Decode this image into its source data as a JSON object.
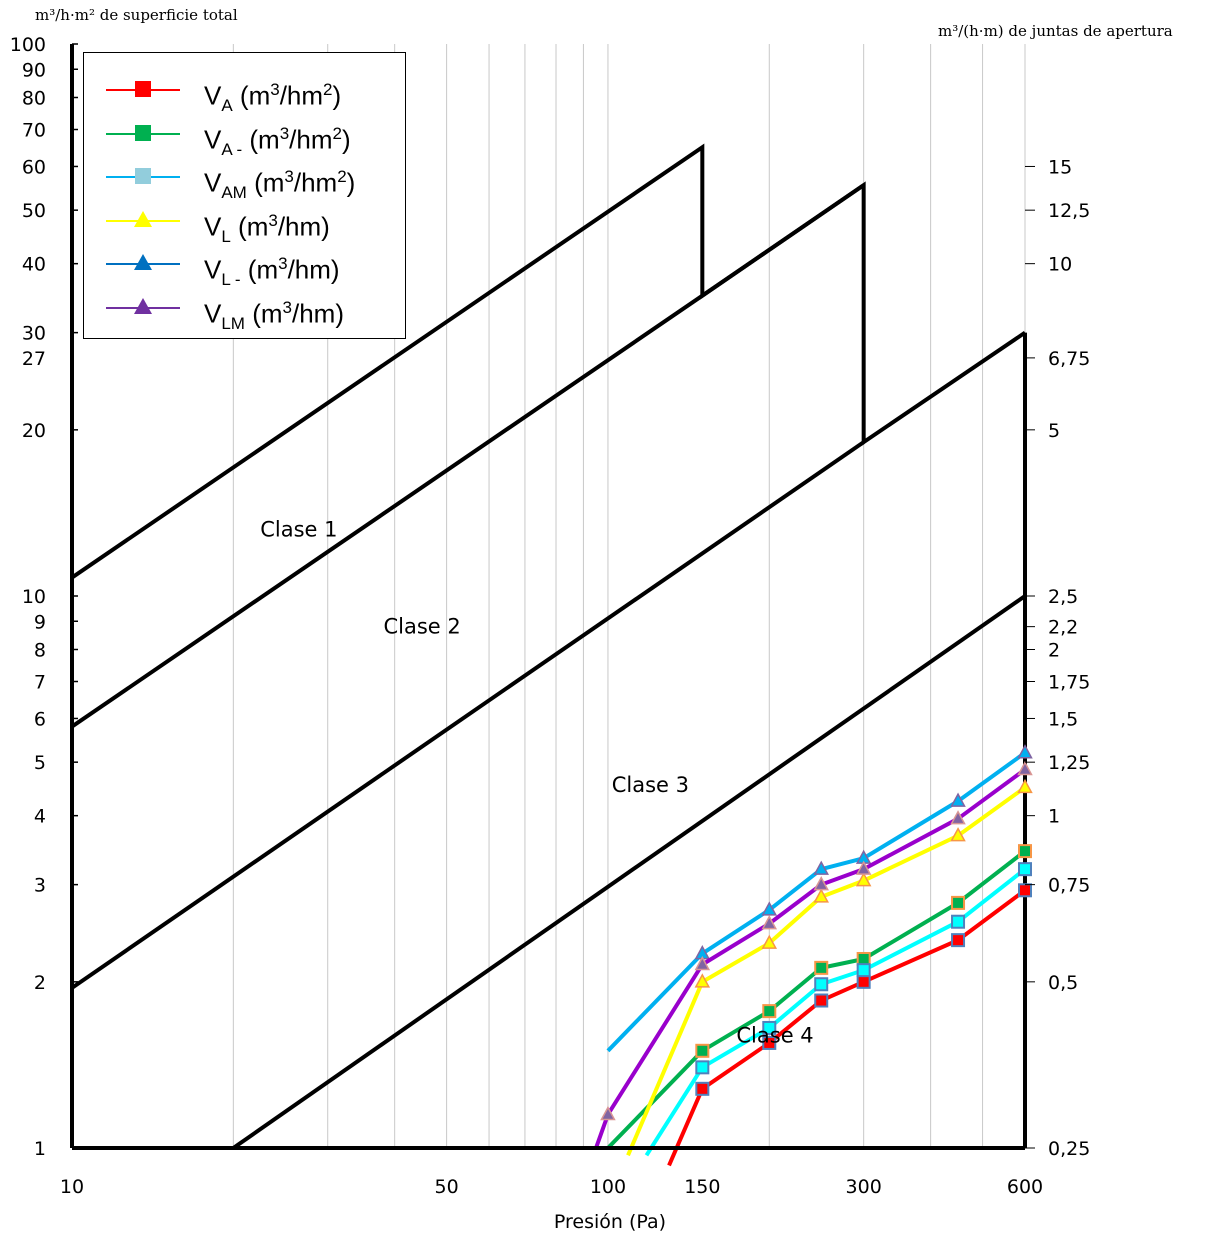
{
  "left_axis_title": "m³/h·m² de superficie total",
  "right_axis_title": "m³/(h·m) de juntas de apertura",
  "xlabel": "Presión (Pa)",
  "colors": {
    "frame": "#000000",
    "grid": "#c8c8c8",
    "VA": "#ff0000",
    "VA-": "#00b050",
    "VAM": "#00ffff",
    "VL": "#ffff00",
    "VL-": "#00b0f0",
    "VLM": "#9900cc"
  },
  "legend": [
    {
      "key": "VA",
      "base": "V",
      "sub": "A",
      "unit_pre": " (m",
      "sup": "3",
      "unit_mid": "/hm",
      "sup2": "2",
      "unit_post": ")",
      "marker": "square",
      "color": "#ff0000",
      "fill": "#ff0000"
    },
    {
      "key": "VA-",
      "base": "V",
      "sub": "A -",
      "unit_pre": " (m",
      "sup": "3",
      "unit_mid": "/hm",
      "sup2": "2",
      "unit_post": ")",
      "marker": "square",
      "color": "#00b050",
      "fill": "#00b050"
    },
    {
      "key": "VAM",
      "base": "V",
      "sub": "AM",
      "unit_pre": " (m",
      "sup": "3",
      "unit_mid": "/hm",
      "sup2": "2",
      "unit_post": ")",
      "marker": "square",
      "color": "#00b0f0",
      "fill": "#92cddc"
    },
    {
      "key": "VL",
      "base": "V",
      "sub": "L",
      "unit_pre": " (m",
      "sup": "3",
      "unit_mid": "/hm",
      "sup2": "",
      "unit_post": ")",
      "marker": "triangle",
      "color": "#ffff00",
      "fill": "#ffff00"
    },
    {
      "key": "VL-",
      "base": "V",
      "sub": "L -",
      "unit_pre": " (m",
      "sup": "3",
      "unit_mid": "/hm",
      "sup2": "",
      "unit_post": ")",
      "marker": "triangle",
      "color": "#0070c0",
      "fill": "#0070c0"
    },
    {
      "key": "VLM",
      "base": "V",
      "sub": "LM",
      "unit_pre": " (m",
      "sup": "3",
      "unit_mid": "/hm",
      "sup2": "",
      "unit_post": ")",
      "marker": "triangle",
      "color": "#7030a0",
      "fill": "#7030a0"
    }
  ],
  "chart_data": {
    "type": "line",
    "xscale": "log",
    "yscale": "log",
    "xlim": [
      10,
      600
    ],
    "ylim": [
      1,
      100
    ],
    "right_ylim": [
      0.25,
      25
    ],
    "grid": true,
    "legend_position": "top-left",
    "xticks": [
      {
        "v": 10,
        "label": "10"
      },
      {
        "v": 50,
        "label": "50"
      },
      {
        "v": 100,
        "label": "100"
      },
      {
        "v": 150,
        "label": "150"
      },
      {
        "v": 300,
        "label": "300"
      },
      {
        "v": 600,
        "label": "600"
      }
    ],
    "yticks_left": [
      {
        "v": 1,
        "label": "1"
      },
      {
        "v": 2,
        "label": "2"
      },
      {
        "v": 3,
        "label": "3"
      },
      {
        "v": 4,
        "label": "4"
      },
      {
        "v": 5,
        "label": "5"
      },
      {
        "v": 6,
        "label": "6"
      },
      {
        "v": 7,
        "label": "7"
      },
      {
        "v": 8,
        "label": "8"
      },
      {
        "v": 9,
        "label": "9"
      },
      {
        "v": 10,
        "label": "10"
      },
      {
        "v": 20,
        "label": "20"
      },
      {
        "v": 27,
        "label": "27"
      },
      {
        "v": 30,
        "label": "30"
      },
      {
        "v": 40,
        "label": "40"
      },
      {
        "v": 50,
        "label": "50"
      },
      {
        "v": 60,
        "label": "60"
      },
      {
        "v": 70,
        "label": "70"
      },
      {
        "v": 80,
        "label": "80"
      },
      {
        "v": 90,
        "label": "90"
      },
      {
        "v": 100,
        "label": "100"
      }
    ],
    "yticks_right": [
      {
        "v": 0.25,
        "label": "0,25"
      },
      {
        "v": 0.5,
        "label": "0,5"
      },
      {
        "v": 0.75,
        "label": "0,75"
      },
      {
        "v": 1,
        "label": "1"
      },
      {
        "v": 1.25,
        "label": "1,25"
      },
      {
        "v": 1.5,
        "label": "1,5"
      },
      {
        "v": 1.75,
        "label": "1,75"
      },
      {
        "v": 2,
        "label": "2"
      },
      {
        "v": 2.2,
        "label": "2,2"
      },
      {
        "v": 2.5,
        "label": "2,5"
      },
      {
        "v": 5,
        "label": "5"
      },
      {
        "v": 6.75,
        "label": "6,75"
      },
      {
        "v": 10,
        "label": "10"
      },
      {
        "v": 12.5,
        "label": "12,5"
      },
      {
        "v": 15,
        "label": "15"
      }
    ],
    "class_boundaries": [
      {
        "name": "clase1-upper",
        "points": [
          [
            10,
            10.8
          ],
          [
            150,
            65
          ],
          [
            150,
            35
          ],
          [
            300,
            55.5
          ],
          [
            300,
            19
          ],
          [
            600,
            30
          ]
        ]
      },
      {
        "name": "clase1-lower",
        "points": [
          [
            10,
            5.8
          ],
          [
            150,
            35
          ],
          [
            300,
            55.5
          ]
        ]
      },
      {
        "name": "clase2-lower",
        "points": [
          [
            10,
            1.95
          ],
          [
            300,
            19
          ]
        ]
      },
      {
        "name": "clase3-lower",
        "points": [
          [
            20,
            1
          ],
          [
            600,
            10
          ]
        ]
      }
    ],
    "class_labels": [
      {
        "text": "Clase 1",
        "x": 26.5,
        "y": 13.2
      },
      {
        "text": "Clase 2",
        "x": 45,
        "y": 8.8
      },
      {
        "text": "Clase 3",
        "x": 120,
        "y": 4.55
      },
      {
        "text": "Clase 4",
        "x": 205,
        "y": 1.6
      }
    ],
    "series": [
      {
        "name": "VA",
        "color": "#ff0000",
        "marker": "square",
        "marker_fill": "#ff0000",
        "marker_edge": "#4f81bd",
        "points": [
          [
            130,
            0.93
          ],
          [
            150,
            1.28
          ],
          [
            200,
            1.55
          ],
          [
            250,
            1.85
          ],
          [
            300,
            2.0
          ],
          [
            450,
            2.38
          ],
          [
            600,
            2.93
          ]
        ]
      },
      {
        "name": "VA-",
        "color": "#00b050",
        "marker": "square",
        "marker_fill": "#00b050",
        "marker_edge": "#f79646",
        "points": [
          [
            100,
            1.0
          ],
          [
            150,
            1.5
          ],
          [
            200,
            1.77
          ],
          [
            250,
            2.12
          ],
          [
            300,
            2.2
          ],
          [
            450,
            2.78
          ],
          [
            600,
            3.45
          ]
        ]
      },
      {
        "name": "VAM",
        "color": "#00ffff",
        "marker": "square",
        "marker_fill": "#00ffff",
        "marker_edge": "#4f81bd",
        "points": [
          [
            118,
            0.97
          ],
          [
            150,
            1.4
          ],
          [
            200,
            1.65
          ],
          [
            250,
            1.98
          ],
          [
            300,
            2.1
          ],
          [
            450,
            2.57
          ],
          [
            600,
            3.2
          ]
        ]
      },
      {
        "name": "VL",
        "color": "#ffff00",
        "marker": "triangle",
        "marker_fill": "#ffff00",
        "marker_edge": "#f79646",
        "points": [
          [
            109,
            0.97
          ],
          [
            150,
            2.0
          ],
          [
            200,
            2.35
          ],
          [
            250,
            2.85
          ],
          [
            300,
            3.05
          ],
          [
            450,
            3.68
          ],
          [
            600,
            4.5
          ]
        ]
      },
      {
        "name": "VL-",
        "color": "#00b0f0",
        "marker": "triangle",
        "marker_fill": "#00b0f0",
        "marker_edge": "#8064a2",
        "points": [
          [
            100,
            1.5
          ],
          [
            150,
            2.25
          ],
          [
            200,
            2.7
          ],
          [
            250,
            3.2
          ],
          [
            300,
            3.35
          ],
          [
            450,
            4.25
          ],
          [
            600,
            5.2
          ]
        ]
      },
      {
        "name": "VLM",
        "color": "#9900cc",
        "marker": "triangle",
        "marker_fill": "#8064a2",
        "marker_edge": "#d99694",
        "points": [
          [
            95,
            1.0
          ],
          [
            100,
            1.15
          ],
          [
            150,
            2.15
          ],
          [
            200,
            2.55
          ],
          [
            250,
            3.0
          ],
          [
            300,
            3.2
          ],
          [
            450,
            3.95
          ],
          [
            600,
            4.85
          ]
        ]
      }
    ]
  }
}
